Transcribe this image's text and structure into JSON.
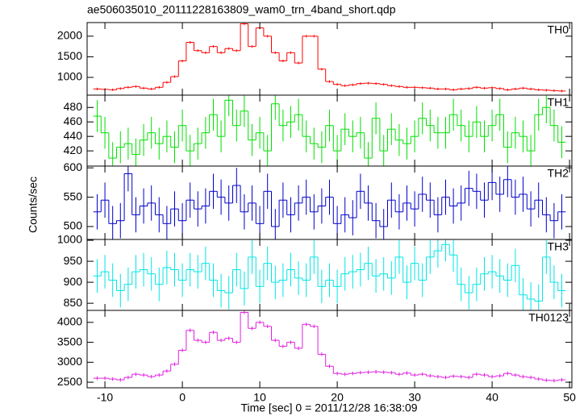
{
  "chart_data": {
    "type": "step",
    "title": "ae506035010_20111228163809_wam0_trn_4band_short.qdp",
    "xlabel": "Time [sec] 0 = 2011/12/28 16:38:09",
    "ylabel": "Counts/sec",
    "xlim": [
      -12.3,
      50.3
    ],
    "xticks": [
      -10,
      0,
      10,
      20,
      30,
      40,
      50
    ],
    "x": [
      -11,
      -10,
      -9,
      -8,
      -7,
      -6,
      -5,
      -4,
      -3,
      -2,
      -1,
      0,
      1,
      2,
      3,
      4,
      5,
      6,
      7,
      8,
      9,
      10,
      11,
      12,
      13,
      14,
      15,
      16,
      17,
      18,
      19,
      20,
      21,
      22,
      23,
      24,
      25,
      26,
      27,
      28,
      29,
      30,
      31,
      32,
      33,
      34,
      35,
      36,
      37,
      38,
      39,
      40,
      41,
      42,
      43,
      44,
      45,
      46,
      47,
      48,
      49
    ],
    "series": [
      {
        "name": "TH0",
        "color": "#ff0000",
        "ylim": [
          570,
          2330
        ],
        "yticks": [
          1000,
          1500,
          2000
        ],
        "yerr": 30,
        "values": [
          720,
          710,
          700,
          730,
          760,
          780,
          740,
          720,
          760,
          880,
          1020,
          1400,
          1850,
          1650,
          1600,
          1750,
          1600,
          1700,
          1650,
          2300,
          1750,
          2200,
          2000,
          1600,
          1400,
          1600,
          1350,
          2000,
          2000,
          1200,
          900,
          830,
          800,
          820,
          850,
          860,
          850,
          830,
          800,
          780,
          760,
          760,
          750,
          740,
          720,
          720,
          700,
          720,
          730,
          760,
          740,
          750,
          730,
          700,
          720,
          740,
          720,
          700,
          690,
          680,
          670
        ]
      },
      {
        "name": "TH1",
        "color": "#00e000",
        "ylim": [
          399,
          497
        ],
        "yticks": [
          420,
          440,
          460,
          480
        ],
        "yerr": 22,
        "values": [
          468,
          445,
          410,
          425,
          430,
          415,
          435,
          445,
          430,
          440,
          425,
          455,
          420,
          430,
          445,
          470,
          440,
          490,
          455,
          475,
          435,
          445,
          420,
          485,
          455,
          460,
          470,
          440,
          430,
          425,
          455,
          420,
          450,
          440,
          445,
          410,
          465,
          420,
          450,
          435,
          430,
          440,
          465,
          455,
          445,
          445,
          470,
          455,
          440,
          460,
          440,
          455,
          470,
          425,
          445,
          440,
          420,
          470,
          480,
          455,
          432
        ]
      },
      {
        "name": "TH2",
        "color": "#0000cc",
        "ylim": [
          478,
          603
        ],
        "yticks": [
          500,
          550,
          600
        ],
        "yerr": 30,
        "values": [
          525,
          545,
          505,
          510,
          590,
          520,
          535,
          540,
          520,
          505,
          530,
          510,
          545,
          530,
          535,
          560,
          550,
          540,
          570,
          525,
          540,
          505,
          560,
          500,
          545,
          520,
          540,
          550,
          525,
          535,
          550,
          505,
          520,
          515,
          560,
          540,
          510,
          500,
          545,
          525,
          540,
          530,
          555,
          545,
          520,
          550,
          535,
          540,
          565,
          560,
          545,
          575,
          555,
          580,
          550,
          555,
          530,
          545,
          520,
          510,
          525
        ]
      },
      {
        "name": "TH3",
        "color": "#00e5e5",
        "ylim": [
          833,
          1002
        ],
        "yticks": [
          850,
          900,
          950,
          1000
        ],
        "yerr": 40,
        "values": [
          915,
          925,
          905,
          880,
          895,
          925,
          930,
          920,
          895,
          935,
          930,
          905,
          930,
          925,
          945,
          905,
          880,
          875,
          930,
          885,
          960,
          890,
          945,
          900,
          905,
          930,
          910,
          905,
          960,
          890,
          905,
          890,
          920,
          925,
          930,
          945,
          915,
          920,
          910,
          960,
          900,
          945,
          905,
          960,
          975,
          990,
          965,
          895,
          875,
          895,
          920,
          925,
          915,
          905,
          940,
          870,
          860,
          855,
          960,
          900,
          880
        ]
      },
      {
        "name": "TH0123",
        "color": "#e020e0",
        "ylim": [
          2360,
          4300
        ],
        "yticks": [
          2500,
          3000,
          3500,
          4000
        ],
        "yerr": 45,
        "values": [
          2600,
          2600,
          2580,
          2560,
          2620,
          2700,
          2680,
          2640,
          2680,
          2780,
          2950,
          3300,
          3800,
          3550,
          3500,
          3750,
          3550,
          3600,
          3500,
          4250,
          3850,
          4000,
          3900,
          3550,
          3400,
          3500,
          3350,
          3950,
          3900,
          3200,
          2900,
          2720,
          2700,
          2720,
          2740,
          2750,
          2760,
          2750,
          2740,
          2700,
          2730,
          2680,
          2700,
          2660,
          2640,
          2620,
          2650,
          2640,
          2620,
          2700,
          2680,
          2640,
          2660,
          2720,
          2680,
          2640,
          2620,
          2580,
          2550,
          2540,
          2560
        ]
      }
    ]
  }
}
